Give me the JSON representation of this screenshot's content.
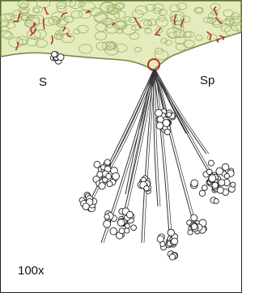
{
  "labels": {
    "s": "S",
    "sp": "Sp",
    "magnification": "100x"
  }
}
